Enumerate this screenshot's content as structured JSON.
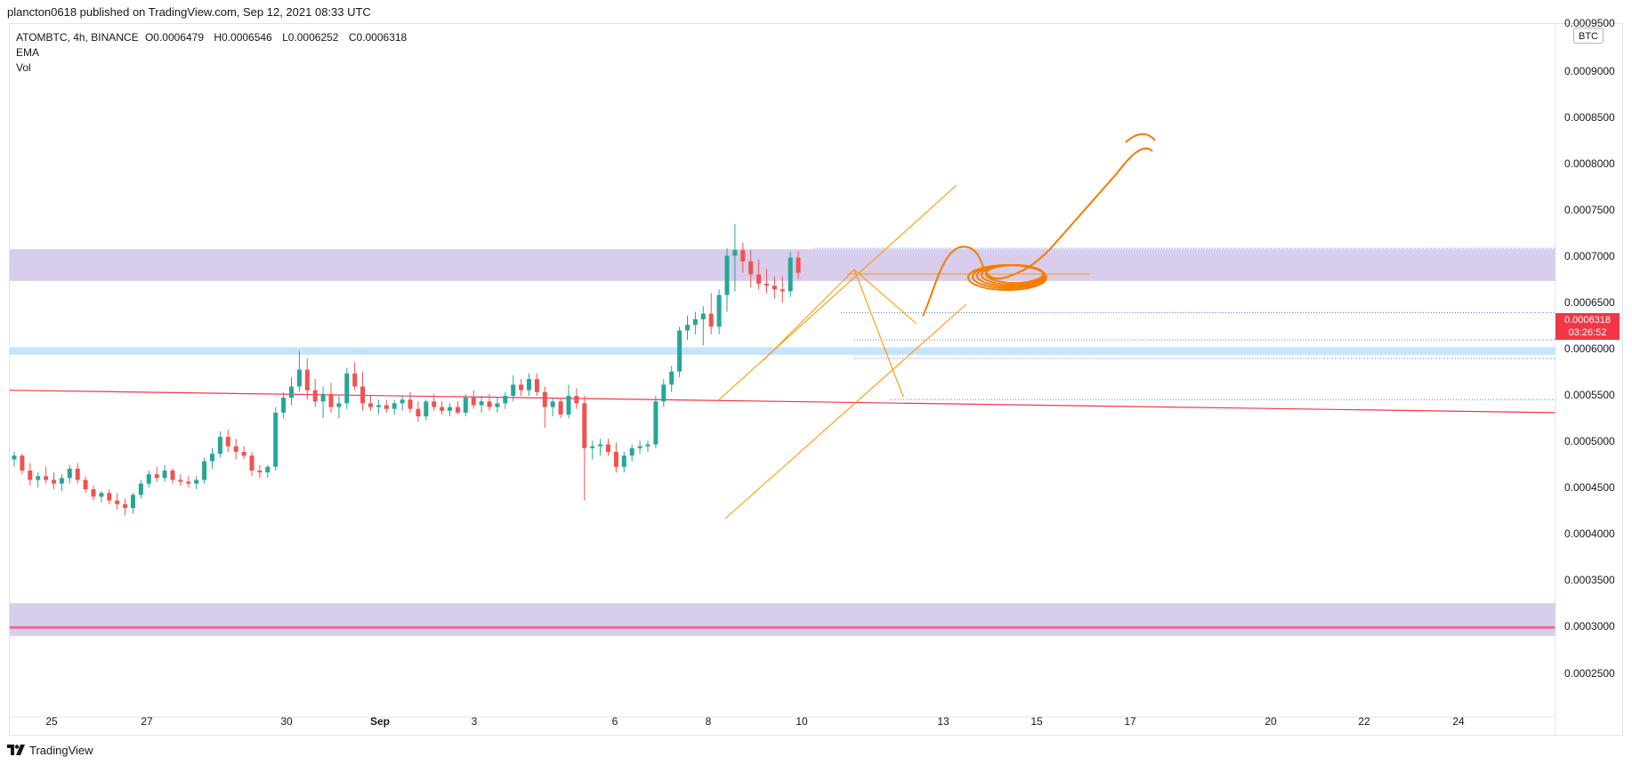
{
  "header": {
    "publish_line": "plancton0618 published on TradingView.com, Sep 12, 2021 08:33 UTC"
  },
  "legend": {
    "symbol": "ATOMBTC, 4h, BINANCE",
    "open": "O0.0006479",
    "high": "H0.0006546",
    "low": "L0.0006252",
    "close": "C0.0006318",
    "indicators": [
      "EMA",
      "Vol"
    ]
  },
  "currency": "BTC",
  "price_label": {
    "price": "0.0006318",
    "countdown": "03:26:52"
  },
  "footer": {
    "brand": "TradingView"
  },
  "colors": {
    "up_candle": "#26a69a",
    "down_candle": "#ef5350",
    "zone_purple": "#d1c4e9",
    "zone_blue": "#bbdefb",
    "trendline_red": "#f23645",
    "drawing_orange": "#ff9800",
    "drawing_orange_bold": "#f57c00",
    "support_dotted": "#2962ff"
  },
  "chart_data": {
    "type": "candlestick",
    "y_axis_labels": [
      "0.0009500",
      "0.0009000",
      "0.0008500",
      "0.0008000",
      "0.0007500",
      "0.0007000",
      "0.0006500",
      "0.0006000",
      "0.0005500",
      "0.0005000",
      "0.0004500",
      "0.0004000",
      "0.0003500",
      "0.0003000",
      "0.0002500"
    ],
    "x_axis_labels": [
      "25",
      "27",
      "30",
      "Sep",
      "3",
      "6",
      "8",
      "10",
      "13",
      "15",
      "17",
      "20",
      "22",
      "24"
    ],
    "ohlc": [
      [
        0.000432,
        0.00044,
        0.000424,
        0.000436
      ],
      [
        0.000436,
        0.000438,
        0.000416,
        0.00042
      ],
      [
        0.00042,
        0.000428,
        0.000404,
        0.00041
      ],
      [
        0.00041,
        0.000418,
        0.000402,
        0.000414
      ],
      [
        0.000414,
        0.000424,
        0.000406,
        0.00041
      ],
      [
        0.00041,
        0.000418,
        0.0004,
        0.000406
      ],
      [
        0.000406,
        0.000416,
        0.000398,
        0.000412
      ],
      [
        0.000412,
        0.000426,
        0.000406,
        0.000422
      ],
      [
        0.000422,
        0.000428,
        0.000406,
        0.00041
      ],
      [
        0.00041,
        0.000414,
        0.000396,
        0.0004
      ],
      [
        0.0004,
        0.000404,
        0.000388,
        0.000392
      ],
      [
        0.000392,
        0.000398,
        0.000386,
        0.000396
      ],
      [
        0.000396,
        0.0004,
        0.000384,
        0.000388
      ],
      [
        0.000388,
        0.000396,
        0.000378,
        0.000384
      ],
      [
        0.000384,
        0.00039,
        0.000372,
        0.00038
      ],
      [
        0.00038,
        0.000396,
        0.000374,
        0.000394
      ],
      [
        0.000394,
        0.00041,
        0.00039,
        0.000406
      ],
      [
        0.000406,
        0.00042,
        0.000402,
        0.000416
      ],
      [
        0.000416,
        0.000424,
        0.000408,
        0.000412
      ],
      [
        0.000412,
        0.000426,
        0.000408,
        0.00042
      ],
      [
        0.00042,
        0.000422,
        0.000406,
        0.00041
      ],
      [
        0.00041,
        0.000416,
        0.000404,
        0.000408
      ],
      [
        0.000408,
        0.000414,
        0.000402,
        0.000406
      ],
      [
        0.000406,
        0.000414,
        0.0004,
        0.00041
      ],
      [
        0.00041,
        0.000434,
        0.000406,
        0.00043
      ],
      [
        0.00043,
        0.000444,
        0.000422,
        0.000438
      ],
      [
        0.000438,
        0.000462,
        0.000434,
        0.000456
      ],
      [
        0.000456,
        0.000464,
        0.00044,
        0.000446
      ],
      [
        0.000446,
        0.000454,
        0.000432,
        0.00044
      ],
      [
        0.00044,
        0.000446,
        0.000432,
        0.000436
      ],
      [
        0.000436,
        0.00044,
        0.000414,
        0.00042
      ],
      [
        0.00042,
        0.000426,
        0.000412,
        0.000418
      ],
      [
        0.000418,
        0.000426,
        0.000412,
        0.000424
      ],
      [
        0.000424,
        0.000488,
        0.00042,
        0.000482
      ],
      [
        0.000482,
        0.000504,
        0.000476,
        0.000498
      ],
      [
        0.000498,
        0.00052,
        0.00049,
        0.00051
      ],
      [
        0.00051,
        0.000548,
        0.000504,
        0.000528
      ],
      [
        0.000528,
        0.00054,
        0.000496,
        0.000506
      ],
      [
        0.000506,
        0.000518,
        0.000488,
        0.000494
      ],
      [
        0.000494,
        0.00051,
        0.000476,
        0.000502
      ],
      [
        0.000502,
        0.000514,
        0.000482,
        0.000488
      ],
      [
        0.000488,
        0.0005,
        0.000476,
        0.000492
      ],
      [
        0.000492,
        0.00053,
        0.000486,
        0.000524
      ],
      [
        0.000524,
        0.000536,
        0.000506,
        0.00051
      ],
      [
        0.00051,
        0.000526,
        0.000484,
        0.000492
      ],
      [
        0.000492,
        0.0005,
        0.000484,
        0.000488
      ],
      [
        0.000488,
        0.000496,
        0.00048,
        0.00049
      ],
      [
        0.00049,
        0.000496,
        0.000482,
        0.000486
      ],
      [
        0.000486,
        0.000496,
        0.00048,
        0.000492
      ],
      [
        0.000492,
        0.0005,
        0.000484,
        0.000496
      ],
      [
        0.000496,
        0.000504,
        0.000482,
        0.000486
      ],
      [
        0.000486,
        0.000494,
        0.000472,
        0.000478
      ],
      [
        0.000478,
        0.000496,
        0.000474,
        0.000494
      ],
      [
        0.000494,
        0.000502,
        0.000484,
        0.000488
      ],
      [
        0.000488,
        0.000494,
        0.00048,
        0.000484
      ],
      [
        0.000484,
        0.000492,
        0.000478,
        0.000488
      ],
      [
        0.000488,
        0.000494,
        0.00048,
        0.000482
      ],
      [
        0.000482,
        0.000502,
        0.000478,
        0.000498
      ],
      [
        0.000498,
        0.000506,
        0.000486,
        0.00049
      ],
      [
        0.00049,
        0.0005,
        0.000482,
        0.000494
      ],
      [
        0.000494,
        0.000502,
        0.000484,
        0.000488
      ],
      [
        0.000488,
        0.000498,
        0.000482,
        0.000492
      ],
      [
        0.000492,
        0.000504,
        0.000486,
        0.0005
      ],
      [
        0.0005,
        0.000522,
        0.000494,
        0.000512
      ],
      [
        0.000512,
        0.000518,
        0.0005,
        0.000506
      ],
      [
        0.000506,
        0.000524,
        0.0005,
        0.000518
      ],
      [
        0.000518,
        0.000524,
        0.0005,
        0.000504
      ],
      [
        0.000504,
        0.00051,
        0.000466,
        0.000488
      ],
      [
        0.000488,
        0.000498,
        0.000478,
        0.000494
      ],
      [
        0.000494,
        0.000498,
        0.000476,
        0.00048
      ],
      [
        0.00048,
        0.000512,
        0.000476,
        0.0005
      ],
      [
        0.0005,
        0.000508,
        0.000486,
        0.000492
      ],
      [
        0.000492,
        0.0005,
        0.000388,
        0.000444
      ],
      [
        0.000444,
        0.000452,
        0.000432,
        0.000446
      ],
      [
        0.000446,
        0.000454,
        0.000436,
        0.000448
      ],
      [
        0.000448,
        0.000454,
        0.000436,
        0.00044
      ],
      [
        0.00044,
        0.00045,
        0.000418,
        0.000424
      ],
      [
        0.000424,
        0.00044,
        0.000418,
        0.000436
      ],
      [
        0.000436,
        0.000448,
        0.00043,
        0.000444
      ],
      [
        0.000444,
        0.000452,
        0.000438,
        0.000446
      ],
      [
        0.000446,
        0.000452,
        0.00044,
        0.000448
      ],
      [
        0.000448,
        0.0005,
        0.000444,
        0.000494
      ],
      [
        0.000494,
        0.000518,
        0.000488,
        0.000512
      ],
      [
        0.000512,
        0.000532,
        0.000504,
        0.000526
      ],
      [
        0.000526,
        0.000574,
        0.00052,
        0.00057
      ],
      [
        0.00057,
        0.000586,
        0.00056,
        0.000576
      ],
      [
        0.000576,
        0.00059,
        0.000566,
        0.000582
      ],
      [
        0.000582,
        0.000596,
        0.000554,
        0.000588
      ],
      [
        0.000588,
        0.00061,
        0.000566,
        0.000574
      ],
      [
        0.000574,
        0.000614,
        0.000566,
        0.000608
      ],
      [
        0.000608,
        0.000658,
        0.00059,
        0.00065
      ],
      [
        0.00065,
        0.000684,
        0.000612,
        0.000656
      ],
      [
        0.000656,
        0.000664,
        0.000632,
        0.000644
      ],
      [
        0.000644,
        0.000656,
        0.000616,
        0.00063
      ],
      [
        0.00063,
        0.000646,
        0.000614,
        0.00062
      ],
      [
        0.00062,
        0.000636,
        0.00061,
        0.000618
      ],
      [
        0.000618,
        0.000628,
        0.000604,
        0.000614
      ],
      [
        0.000614,
        0.000628,
        0.0006,
        0.000612
      ],
      [
        0.000612,
        0.000654,
        0.000606,
        0.000648
      ],
      [
        0.0006479,
        0.0006546,
        0.0006252,
        0.0006318
      ]
    ],
    "zones": [
      {
        "from": 0.000623,
        "to": 0.000657,
        "color": "#d1c4e9"
      },
      {
        "from": 0.000544,
        "to": 0.000552,
        "color": "#bbdefb"
      },
      {
        "from": 0.000243,
        "to": 0.000278,
        "color": "#d1c4e9"
      }
    ],
    "support_levels": [
      0.000658,
      0.000589,
      0.00056,
      0.00054,
      0.000496
    ],
    "red_line": {
      "y_left": 0.000506,
      "y_right": 0.000482
    },
    "pink_line": 0.000252,
    "ylim": [
      0.000225,
      0.00096
    ]
  }
}
